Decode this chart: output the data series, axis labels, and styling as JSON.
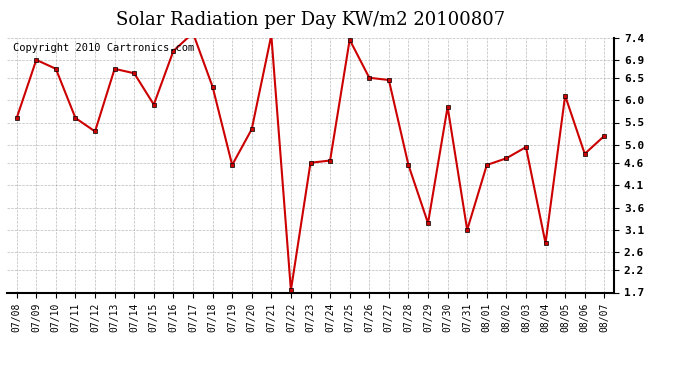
{
  "title": "Solar Radiation per Day KW/m2 20100807",
  "copyright": "Copyright 2010 Cartronics.com",
  "dates": [
    "07/08",
    "07/09",
    "07/10",
    "07/11",
    "07/12",
    "07/13",
    "07/14",
    "07/15",
    "07/16",
    "07/17",
    "07/18",
    "07/19",
    "07/20",
    "07/21",
    "07/22",
    "07/23",
    "07/24",
    "07/25",
    "07/26",
    "07/27",
    "07/28",
    "07/29",
    "07/30",
    "07/31",
    "08/01",
    "08/02",
    "08/03",
    "08/04",
    "08/05",
    "08/06",
    "08/07"
  ],
  "values": [
    5.6,
    6.9,
    6.7,
    5.6,
    5.3,
    6.7,
    6.6,
    5.9,
    7.1,
    7.5,
    6.3,
    4.55,
    5.35,
    7.45,
    1.75,
    4.6,
    4.65,
    7.35,
    6.5,
    6.45,
    4.55,
    3.25,
    5.85,
    3.1,
    4.55,
    4.7,
    4.95,
    2.8,
    6.1,
    4.8,
    5.2
  ],
  "ylim": [
    1.7,
    7.4
  ],
  "yticks": [
    1.7,
    2.2,
    2.6,
    3.1,
    3.6,
    4.1,
    4.6,
    5.0,
    5.5,
    6.0,
    6.5,
    6.9,
    7.4
  ],
  "line_color": "#cc0000",
  "marker_color": "#cc0000",
  "marker_edge_color": "#000000",
  "bg_color": "#ffffff",
  "grid_color": "#aaaaaa",
  "title_fontsize": 13,
  "copyright_fontsize": 7.5,
  "tick_fontsize": 7,
  "ytick_fontsize": 8
}
